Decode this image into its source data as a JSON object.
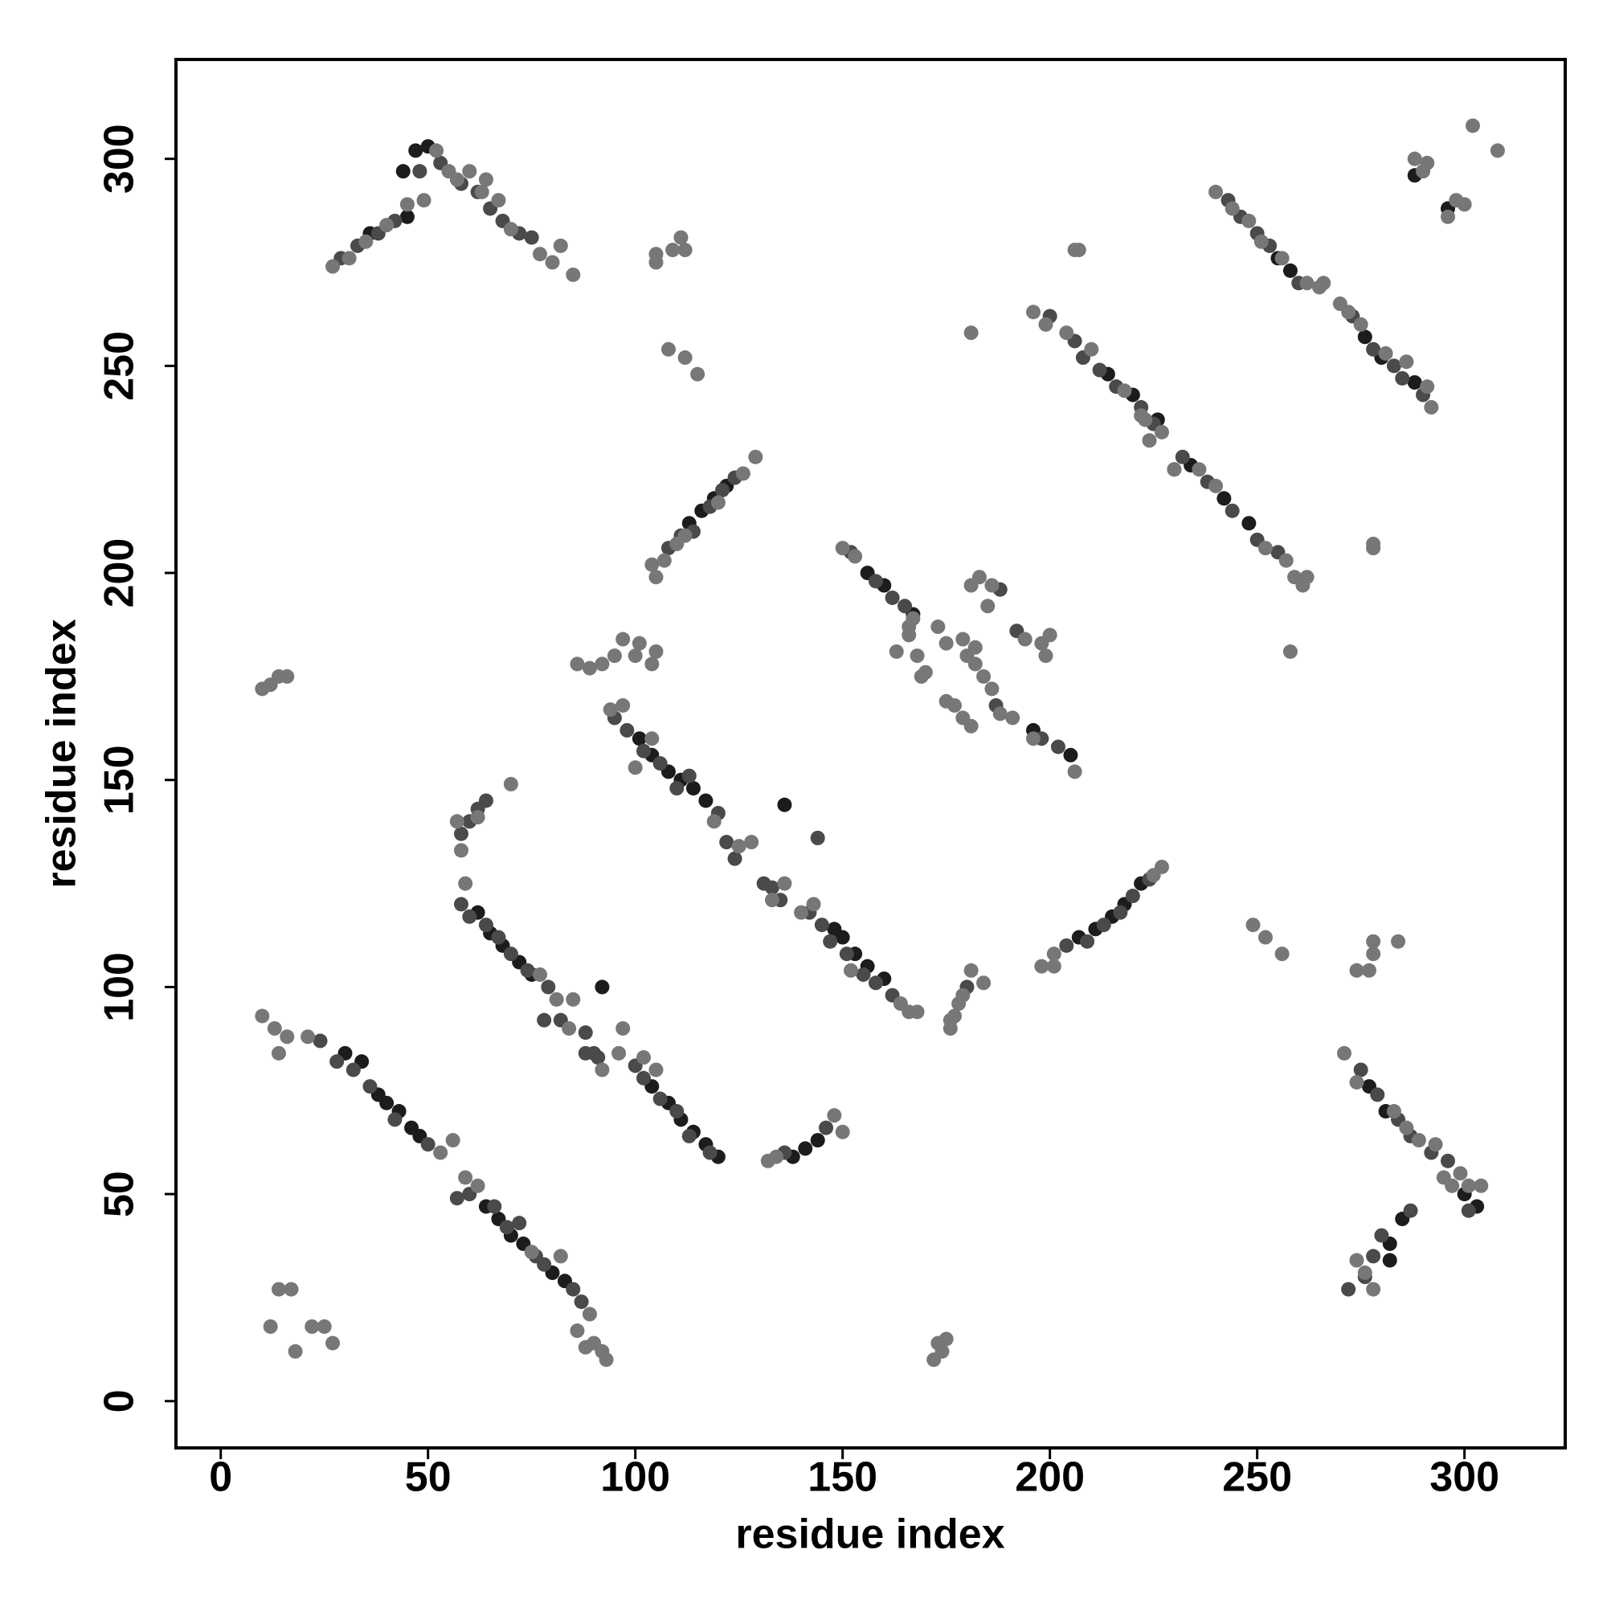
{
  "chart_data": {
    "type": "scatter",
    "x_label": "residue index",
    "y_label": "residue index",
    "xlim": [
      -10.8,
      324.3
    ],
    "ylim": [
      -11.3,
      324
    ],
    "xticks": [
      0,
      50,
      100,
      150,
      200,
      250,
      300
    ],
    "yticks": [
      0,
      50,
      100,
      150,
      200,
      250,
      300
    ],
    "grid": false,
    "series": [
      {
        "color": "#1c1c1c",
        "x": [
          30,
          34,
          38,
          40,
          43,
          46,
          48,
          64,
          67,
          70,
          73,
          80,
          83,
          62,
          65,
          68,
          72,
          75,
          104,
          108,
          111,
          114,
          117,
          120,
          101,
          104,
          108,
          111,
          114,
          117,
          148,
          150,
          153,
          156,
          160,
          113,
          116,
          119,
          122,
          207,
          211,
          215,
          218,
          222,
          44,
          47,
          50,
          36,
          45,
          214,
          220,
          226,
          234,
          242,
          248,
          255,
          258,
          276,
          280,
          288,
          277,
          281,
          300,
          303,
          282,
          282,
          285,
          138,
          141,
          144,
          156,
          160,
          167,
          196,
          205,
          136,
          92,
          288,
          296
        ],
        "values": [
          84,
          82,
          74,
          72,
          70,
          66,
          64,
          47,
          44,
          40,
          38,
          31,
          29,
          118,
          113,
          110,
          106,
          103,
          76,
          72,
          68,
          65,
          62,
          59,
          160,
          156,
          152,
          150,
          148,
          145,
          114,
          112,
          108,
          105,
          102,
          212,
          215,
          218,
          221,
          112,
          114,
          117,
          120,
          125,
          297,
          302,
          303,
          282,
          286,
          248,
          243,
          237,
          226,
          218,
          212,
          276,
          273,
          257,
          252,
          246,
          76,
          70,
          50,
          47,
          38,
          34,
          44,
          59,
          61,
          63,
          200,
          197,
          190,
          162,
          156,
          144,
          100,
          296,
          288
        ]
      },
      {
        "color": "#4a4a4a",
        "x": [
          24,
          28,
          32,
          36,
          42,
          50,
          57,
          60,
          66,
          69,
          72,
          76,
          78,
          85,
          87,
          58,
          60,
          64,
          67,
          70,
          74,
          79,
          82,
          88,
          91,
          100,
          102,
          106,
          110,
          113,
          118,
          95,
          98,
          102,
          106,
          110,
          113,
          120,
          122,
          124,
          131,
          135,
          142,
          145,
          147,
          151,
          155,
          158,
          162,
          58,
          60,
          62,
          64,
          108,
          111,
          114,
          118,
          121,
          124,
          204,
          209,
          213,
          217,
          220,
          224,
          29,
          33,
          38,
          42,
          48,
          53,
          58,
          62,
          65,
          68,
          72,
          75,
          200,
          206,
          208,
          212,
          216,
          222,
          225,
          232,
          238,
          244,
          250,
          255,
          243,
          246,
          250,
          253,
          260,
          273,
          278,
          283,
          285,
          290,
          275,
          279,
          284,
          287,
          292,
          296,
          301,
          278,
          280,
          287,
          276,
          272,
          152,
          158,
          162,
          165,
          188,
          192,
          198,
          202,
          187,
          133,
          136,
          146,
          180,
          144,
          230,
          88,
          90,
          78
        ],
        "values": [
          87,
          82,
          80,
          76,
          68,
          62,
          49,
          50,
          47,
          42,
          43,
          35,
          33,
          27,
          24,
          120,
          117,
          115,
          112,
          108,
          104,
          100,
          92,
          84,
          83,
          81,
          78,
          73,
          70,
          64,
          60,
          165,
          162,
          157,
          154,
          148,
          151,
          142,
          135,
          131,
          125,
          121,
          118,
          115,
          111,
          108,
          103,
          101,
          98,
          137,
          140,
          143,
          145,
          206,
          209,
          210,
          216,
          220,
          223,
          110,
          111,
          115,
          118,
          122,
          126,
          276,
          279,
          282,
          285,
          297,
          299,
          294,
          292,
          288,
          285,
          282,
          281,
          262,
          256,
          252,
          249,
          245,
          240,
          236,
          228,
          222,
          215,
          208,
          205,
          290,
          286,
          282,
          279,
          270,
          262,
          254,
          250,
          247,
          243,
          80,
          74,
          68,
          64,
          60,
          58,
          46,
          35,
          40,
          46,
          30,
          27,
          205,
          198,
          194,
          192,
          196,
          186,
          160,
          158,
          168,
          124,
          60,
          66,
          100,
          136,
          225,
          89,
          84,
          92
        ]
      },
      {
        "color": "#777777",
        "x": [
          10,
          13,
          16,
          14,
          21,
          53,
          56,
          59,
          62,
          75,
          82,
          86,
          88,
          90,
          92,
          93,
          89,
          14,
          17,
          12,
          18,
          25,
          27,
          22,
          172,
          174,
          175,
          173,
          176,
          177,
          178,
          179,
          181,
          184,
          176,
          59,
          77,
          81,
          85,
          84,
          92,
          97,
          96,
          102,
          105,
          132,
          134,
          148,
          150,
          94,
          97,
          100,
          104,
          119,
          125,
          128,
          133,
          136,
          140,
          143,
          152,
          164,
          166,
          168,
          86,
          89,
          92,
          95,
          97,
          101,
          104,
          105,
          100,
          10,
          12,
          14,
          16,
          57,
          58,
          62,
          70,
          105,
          107,
          110,
          112,
          120,
          126,
          129,
          104,
          198,
          201,
          201,
          227,
          225,
          27,
          31,
          35,
          40,
          45,
          49,
          52,
          55,
          57,
          60,
          64,
          67,
          70,
          77,
          80,
          82,
          85,
          63,
          105,
          109,
          111,
          112,
          105,
          108,
          112,
          115,
          150,
          153,
          163,
          166,
          167,
          168,
          170,
          169,
          173,
          175,
          179,
          181,
          183,
          186,
          185,
          180,
          182,
          184,
          186,
          175,
          177,
          179,
          181,
          188,
          191,
          194,
          198,
          199,
          200,
          196,
          206,
          196,
          199,
          204,
          210,
          218,
          223,
          227,
          224,
          222,
          230,
          236,
          240,
          252,
          257,
          259,
          261,
          262,
          240,
          244,
          248,
          251,
          256,
          262,
          265,
          266,
          270,
          272,
          275,
          281,
          286,
          292,
          291,
          271,
          274,
          283,
          286,
          289,
          293,
          295,
          297,
          299,
          301,
          304,
          274,
          276,
          278,
          284,
          277,
          274,
          278,
          278,
          288,
          291,
          290,
          298,
          300,
          302,
          308,
          296,
          207,
          206,
          181,
          258,
          278,
          278,
          249,
          252,
          256,
          182,
          166
        ],
        "values": [
          93,
          90,
          88,
          84,
          88,
          60,
          63,
          54,
          52,
          36,
          35,
          17,
          13,
          14,
          12,
          10,
          21,
          27,
          27,
          18,
          12,
          18,
          14,
          18,
          10,
          12,
          15,
          14,
          90,
          93,
          96,
          98,
          104,
          101,
          92,
          125,
          103,
          97,
          97,
          90,
          80,
          90,
          84,
          83,
          80,
          58,
          59,
          69,
          65,
          167,
          168,
          153,
          160,
          140,
          134,
          135,
          121,
          125,
          118,
          120,
          104,
          96,
          94,
          94,
          178,
          177,
          178,
          180,
          184,
          183,
          178,
          181,
          180,
          172,
          173,
          175,
          175,
          140,
          133,
          141,
          149,
          199,
          203,
          207,
          209,
          217,
          224,
          228,
          202,
          105,
          108,
          105,
          129,
          127,
          274,
          276,
          280,
          284,
          289,
          290,
          302,
          297,
          295,
          297,
          295,
          290,
          283,
          277,
          275,
          279,
          272,
          292,
          277,
          278,
          281,
          278,
          275,
          254,
          252,
          248,
          206,
          204,
          181,
          185,
          189,
          180,
          176,
          175,
          187,
          183,
          184,
          197,
          199,
          197,
          192,
          180,
          178,
          175,
          172,
          169,
          168,
          165,
          163,
          166,
          165,
          184,
          183,
          180,
          185,
          160,
          152,
          263,
          260,
          258,
          254,
          244,
          237,
          234,
          232,
          238,
          225,
          225,
          221,
          206,
          203,
          199,
          197,
          199,
          292,
          288,
          285,
          280,
          276,
          270,
          269,
          270,
          265,
          263,
          260,
          253,
          251,
          240,
          245,
          84,
          77,
          70,
          66,
          63,
          62,
          54,
          52,
          55,
          52,
          52,
          34,
          31,
          27,
          111,
          104,
          104,
          108,
          111,
          300,
          299,
          297,
          290,
          289,
          308,
          302,
          286,
          278,
          278,
          258,
          181,
          206,
          207,
          115,
          112,
          108,
          182,
          187
        ]
      }
    ]
  }
}
